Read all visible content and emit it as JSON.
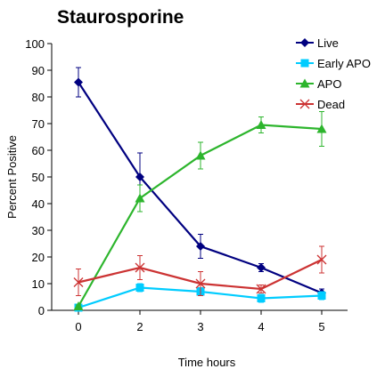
{
  "chart_data": {
    "type": "line",
    "title": "Staurosporine",
    "xlabel": "Time hours",
    "ylabel": "Percent Positive",
    "categories": [
      "0",
      "2",
      "3",
      "4",
      "5"
    ],
    "ylim": [
      0,
      100
    ],
    "yticks": [
      "0",
      "10",
      "20",
      "30",
      "40",
      "50",
      "60",
      "70",
      "80",
      "90",
      "100"
    ],
    "grid": false,
    "legend_position": "top-right",
    "series": [
      {
        "name": "Live",
        "color": "#000080",
        "marker": "diamond",
        "values": [
          85.5,
          50,
          24,
          16,
          6.5
        ],
        "errors": [
          5.5,
          9,
          4.5,
          1.5,
          1.5
        ]
      },
      {
        "name": "Early APO",
        "color": "#00ccff",
        "marker": "square",
        "values": [
          1,
          8.5,
          7,
          4.5,
          5.5
        ],
        "errors": [
          0.5,
          1.5,
          1.5,
          1.5,
          1.5
        ]
      },
      {
        "name": "APO",
        "color": "#2db52d",
        "marker": "triangle",
        "values": [
          1.5,
          42,
          58,
          69.5,
          68
        ],
        "errors": [
          0.5,
          5,
          5,
          3,
          6.5
        ]
      },
      {
        "name": "Dead",
        "color": "#cc3333",
        "marker": "x",
        "values": [
          10.5,
          16,
          10,
          8,
          19
        ],
        "errors": [
          5,
          4.5,
          4.5,
          1.5,
          5
        ]
      }
    ]
  }
}
